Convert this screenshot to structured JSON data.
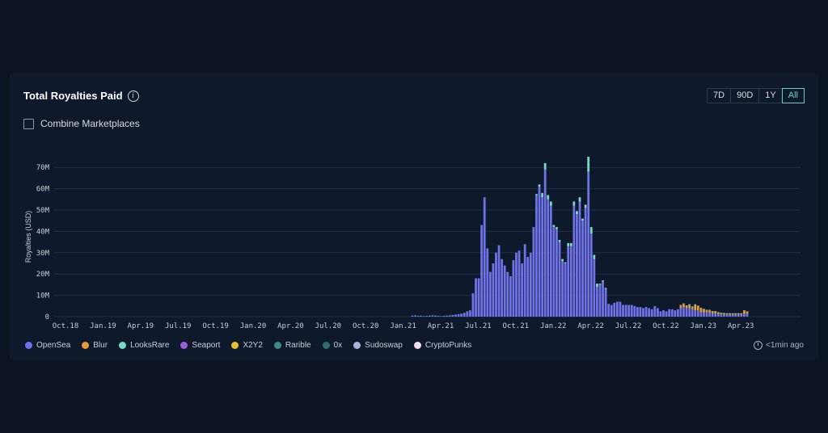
{
  "header": {
    "title": "Total Royalties Paid",
    "info_icon": "info-icon"
  },
  "range_buttons": [
    {
      "label": "7D",
      "active": false
    },
    {
      "label": "90D",
      "active": false
    },
    {
      "label": "1Y",
      "active": false
    },
    {
      "label": "All",
      "active": true
    }
  ],
  "combine": {
    "label": "Combine Marketplaces",
    "checked": false
  },
  "updated": {
    "text": "<1min ago",
    "icon": "clock-icon"
  },
  "colors": {
    "OpenSea": "#7073e8",
    "Blur": "#e79a3c",
    "LooksRare": "#79d9c8",
    "Seaport": "#9b5fd9",
    "X2Y2": "#e8c02a",
    "Rarible": "#3d8a86",
    "0x": "#2f6f70",
    "Sudoswap": "#a9b3dc",
    "CryptoPunks": "#f5dbe6"
  },
  "legend": [
    "OpenSea",
    "Blur",
    "LooksRare",
    "Seaport",
    "X2Y2",
    "Rarible",
    "0x",
    "Sudoswap",
    "CryptoPunks"
  ],
  "chart_data": {
    "type": "bar",
    "stacked": true,
    "title": "",
    "ylabel": "Royalties (USD)",
    "ylim": [
      0,
      75000000
    ],
    "yticks": [
      0,
      10000000,
      20000000,
      30000000,
      40000000,
      50000000,
      60000000,
      70000000
    ],
    "ytick_labels": [
      "0",
      "10M",
      "20M",
      "30M",
      "40M",
      "50M",
      "60M",
      "70M"
    ],
    "xtick_labels": [
      "Oct.18",
      "Jan.19",
      "Apr.19",
      "Jul.19",
      "Oct.19",
      "Jan.20",
      "Apr.20",
      "Jul.20",
      "Oct.20",
      "Jan.21",
      "Apr.21",
      "Jul.21",
      "Oct.21",
      "Jan.22",
      "Apr.22",
      "Jul.22",
      "Oct.22",
      "Jan.23",
      "Apr.23"
    ],
    "grid": true,
    "legend_position": "bottom",
    "bar_interval": "weekly",
    "series": [
      {
        "name": "OpenSea",
        "values": [
          0.5,
          0.6,
          0.4,
          0.5,
          0.3,
          0.4,
          0.5,
          0.6,
          0.5,
          0.4,
          0.3,
          0.4,
          0.5,
          0.6,
          0.8,
          1.0,
          1.2,
          1.4,
          1.8,
          2.5,
          3.0,
          11.0,
          18.0,
          18.0,
          43.0,
          56.0,
          32.0,
          21.0,
          25.0,
          30.0,
          33.5,
          27.0,
          24.0,
          21.0,
          19.0,
          26.5,
          30.0,
          31.0,
          25.0,
          34.0,
          28.0,
          30.0,
          42.0,
          57.0,
          61.0,
          56.0,
          69.0,
          55.0,
          52.0,
          42.0,
          41.0,
          35.0,
          26.0,
          25.0,
          33.0,
          33.0,
          52.0,
          48.0,
          54.0,
          45.0,
          51.0,
          68.0,
          39.0,
          27.0,
          14.0,
          15.0,
          16.5,
          13.0,
          6.0,
          5.5,
          6.5,
          7.0,
          7.0,
          5.5,
          5.5,
          5.5,
          5.5,
          5.0,
          4.5,
          4.5,
          4.0,
          4.5,
          4.0,
          3.5,
          5.0,
          4.0,
          2.5,
          3.0,
          2.5,
          3.5,
          3.5,
          3.0,
          3.5,
          4.0,
          4.5,
          4.0,
          4.0,
          3.5,
          3.0,
          3.0,
          2.0,
          2.0,
          2.0,
          2.0,
          1.5,
          1.5,
          1.2,
          1.2,
          1.0,
          1.0,
          1.0,
          1.0,
          1.0,
          1.0,
          1.0,
          1.5,
          1.5
        ]
      },
      {
        "name": "Blur",
        "values": [
          0,
          0,
          0,
          0,
          0,
          0,
          0,
          0,
          0,
          0,
          0,
          0,
          0,
          0,
          0,
          0,
          0,
          0,
          0,
          0,
          0,
          0,
          0,
          0,
          0,
          0,
          0,
          0,
          0,
          0,
          0,
          0,
          0,
          0,
          0,
          0,
          0,
          0,
          0,
          0,
          0,
          0,
          0,
          0,
          0,
          0,
          0,
          0,
          0,
          0,
          0,
          0,
          0,
          0,
          0,
          0,
          0,
          0,
          0,
          0,
          0,
          0,
          0,
          0,
          0,
          0,
          0,
          0,
          0,
          0,
          0,
          0,
          0,
          0,
          0,
          0,
          0,
          0,
          0,
          0,
          0,
          0,
          0,
          0,
          0,
          0,
          0,
          0,
          0,
          0,
          0,
          0,
          0,
          1.5,
          1.5,
          1.0,
          1.5,
          1.0,
          2.5,
          2.0,
          2.0,
          1.5,
          1.0,
          1.0,
          1.0,
          1.0,
          0.8,
          0.6,
          0.6,
          0.5,
          0.5,
          0.5,
          0.5,
          0.5,
          0.5,
          1.5,
          1.0
        ]
      },
      {
        "name": "LooksRare",
        "values": [
          0,
          0,
          0,
          0,
          0,
          0,
          0,
          0,
          0,
          0,
          0,
          0,
          0,
          0,
          0,
          0,
          0,
          0,
          0,
          0,
          0,
          0,
          0,
          0,
          0,
          0,
          0,
          0,
          0,
          0,
          0,
          0,
          0,
          0,
          0,
          0,
          0,
          0,
          0,
          0,
          0,
          0,
          0,
          0.5,
          1.0,
          2.0,
          3.0,
          2.0,
          2.0,
          1.0,
          1.0,
          1.0,
          1.0,
          0.5,
          1.5,
          1.5,
          2.0,
          1.5,
          2.0,
          1.0,
          1.5,
          7.0,
          3.0,
          2.0,
          1.5,
          0.5,
          0.5,
          0.5,
          0,
          0,
          0,
          0,
          0,
          0,
          0,
          0,
          0,
          0,
          0,
          0,
          0,
          0,
          0,
          0,
          0,
          0,
          0,
          0,
          0,
          0,
          0,
          0,
          0,
          0,
          0.2,
          0.3,
          0.3,
          0.3,
          0.3,
          0.2,
          0.2,
          0.2,
          0.2,
          0.2,
          0.1,
          0.1,
          0.1,
          0.1,
          0.1,
          0.1,
          0.1,
          0.1,
          0.1,
          0.1,
          0.1
        ]
      }
    ],
    "series_start_label": "Jan.21"
  }
}
